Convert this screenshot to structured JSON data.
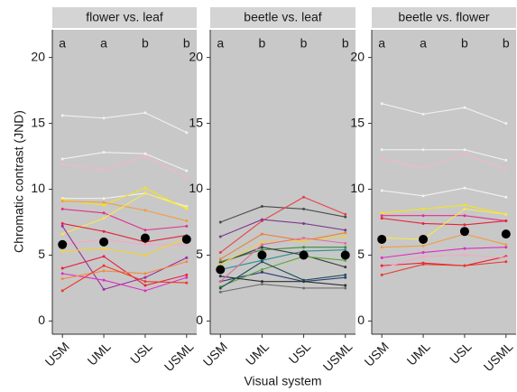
{
  "chart_data": [
    {
      "type": "line",
      "title": "flower vs. leaf",
      "ylabel": "Chromatic contrast (JND)",
      "categories": [
        "USM",
        "UML",
        "USL",
        "USML"
      ],
      "letters": [
        "a",
        "a",
        "b",
        "b"
      ],
      "ylim": [
        -1,
        22.1
      ],
      "yticks": [
        0,
        5,
        10,
        15,
        20
      ],
      "grid": false,
      "series": [
        {
          "color": "#f2f2f2",
          "values": [
            15.6,
            15.4,
            15.8,
            14.3
          ]
        },
        {
          "color": "#f2f2f2",
          "values": [
            12.3,
            12.8,
            12.7,
            11.4
          ]
        },
        {
          "color": "#f4b6c8",
          "values": [
            11.9,
            11.5,
            12.5,
            10.9
          ]
        },
        {
          "color": "#f2f2f2",
          "values": [
            9.3,
            9.3,
            9.7,
            8.7
          ]
        },
        {
          "color": "#f5e321",
          "values": [
            9.2,
            8.8,
            10.1,
            8.5
          ]
        },
        {
          "color": "#f29d3c",
          "values": [
            9.1,
            9.0,
            8.4,
            7.6
          ]
        },
        {
          "color": "#e0308f",
          "values": [
            8.5,
            8.2,
            6.9,
            7.2
          ]
        },
        {
          "color": "#f8e94a",
          "values": [
            6.6,
            7.8,
            9.7,
            8.6
          ]
        },
        {
          "color": "#e8213a",
          "values": [
            7.4,
            6.8,
            6.0,
            6.5
          ]
        },
        {
          "color": "#f7a6c3",
          "values": [
            5.8,
            6.2,
            5.8,
            5.8
          ]
        },
        {
          "color": "#9b2d9f",
          "values": [
            7.2,
            2.4,
            3.3,
            4.8
          ]
        },
        {
          "color": "#e8213a",
          "values": [
            4.0,
            4.9,
            2.7,
            3.5
          ]
        },
        {
          "color": "#e22ac4",
          "values": [
            3.6,
            3.1,
            2.3,
            3.3
          ]
        },
        {
          "color": "#f58a3c",
          "values": [
            3.2,
            3.8,
            3.6,
            4.5
          ]
        },
        {
          "color": "#ea3b2a",
          "values": [
            2.3,
            4.2,
            3.0,
            2.9
          ]
        },
        {
          "color": "#f7d22b",
          "values": [
            5.3,
            5.5,
            5.0,
            6.3
          ]
        }
      ],
      "means": {
        "color": "#000000",
        "values": [
          5.8,
          6.0,
          6.3,
          6.2
        ]
      }
    },
    {
      "type": "line",
      "title": "beetle vs. leaf",
      "xlabel": "Visual system",
      "categories": [
        "USM",
        "UML",
        "USL",
        "USML"
      ],
      "letters": [
        "a",
        "b",
        "b",
        "b"
      ],
      "ylim": [
        -1,
        22.1
      ],
      "yticks": [
        0,
        5,
        10,
        15,
        20
      ],
      "grid": false,
      "series": [
        {
          "color": "#4a4a4a",
          "values": [
            7.5,
            8.7,
            8.5,
            7.9
          ]
        },
        {
          "color": "#e8404a",
          "values": [
            5.2,
            7.6,
            9.4,
            8.1
          ]
        },
        {
          "color": "#7a3a8c",
          "values": [
            6.4,
            7.7,
            7.4,
            6.9
          ]
        },
        {
          "color": "#e8833a",
          "values": [
            4.7,
            6.6,
            6.1,
            6.7
          ]
        },
        {
          "color": "#3c8a3c",
          "values": [
            4.5,
            5.4,
            5.6,
            5.6
          ]
        },
        {
          "color": "#2a8f8a",
          "values": [
            3.9,
            4.6,
            5.3,
            5.4
          ]
        },
        {
          "color": "#3a3a3a",
          "values": [
            4.4,
            5.6,
            5.0,
            4.1
          ]
        },
        {
          "color": "#2a3a7a",
          "values": [
            3.0,
            3.7,
            3.0,
            3.3
          ]
        },
        {
          "color": "#5aa83a",
          "values": [
            2.6,
            3.9,
            4.9,
            4.6
          ]
        },
        {
          "color": "#2e2e2e",
          "values": [
            3.4,
            3.0,
            3.0,
            2.7
          ]
        },
        {
          "color": "#707070",
          "values": [
            2.2,
            2.8,
            2.5,
            2.5
          ]
        },
        {
          "color": "#f2d23a",
          "values": [
            4.3,
            6.0,
            6.1,
            6.4
          ]
        },
        {
          "color": "#e06aa0",
          "values": [
            3.0,
            5.8,
            6.3,
            5.9
          ]
        },
        {
          "color": "#1f4f4f",
          "values": [
            2.5,
            4.5,
            3.1,
            3.5
          ]
        }
      ],
      "means": {
        "color": "#000000",
        "values": [
          3.9,
          5.0,
          5.0,
          5.0
        ]
      }
    },
    {
      "type": "line",
      "title": "beetle vs. flower",
      "categories": [
        "USM",
        "UML",
        "USL",
        "USML"
      ],
      "letters": [
        "a",
        "a",
        "b",
        "b"
      ],
      "ylim": [
        -1,
        22.1
      ],
      "yticks": [
        0,
        5,
        10,
        15,
        20
      ],
      "grid": false,
      "series": [
        {
          "color": "#f2f2f2",
          "values": [
            16.5,
            15.7,
            16.2,
            15.0
          ]
        },
        {
          "color": "#f2f2f2",
          "values": [
            13.0,
            13.0,
            13.0,
            12.2
          ]
        },
        {
          "color": "#f4b6c8",
          "values": [
            12.3,
            11.6,
            12.7,
            11.5
          ]
        },
        {
          "color": "#f2f2f2",
          "values": [
            9.9,
            9.5,
            10.1,
            9.4
          ]
        },
        {
          "color": "#f5e321",
          "values": [
            8.2,
            8.5,
            8.8,
            8.1
          ]
        },
        {
          "color": "#e0308f",
          "values": [
            8.0,
            8.0,
            8.0,
            7.6
          ]
        },
        {
          "color": "#e8213a",
          "values": [
            7.8,
            7.4,
            7.3,
            7.6
          ]
        },
        {
          "color": "#f8e94a",
          "values": [
            6.3,
            6.2,
            8.5,
            8.1
          ]
        },
        {
          "color": "#f29d3c",
          "values": [
            5.6,
            5.7,
            6.6,
            5.8
          ]
        },
        {
          "color": "#e8213a",
          "values": [
            4.2,
            4.4,
            4.2,
            4.9
          ]
        },
        {
          "color": "#e22ac4",
          "values": [
            4.8,
            5.2,
            5.5,
            5.6
          ]
        },
        {
          "color": "#ea3b2a",
          "values": [
            3.5,
            4.3,
            4.2,
            4.5
          ]
        },
        {
          "color": "#f7a6c3",
          "values": [
            4.0,
            4.9,
            5.0,
            4.8
          ]
        }
      ],
      "means": {
        "color": "#000000",
        "values": [
          6.2,
          6.2,
          6.8,
          6.6
        ]
      }
    }
  ]
}
